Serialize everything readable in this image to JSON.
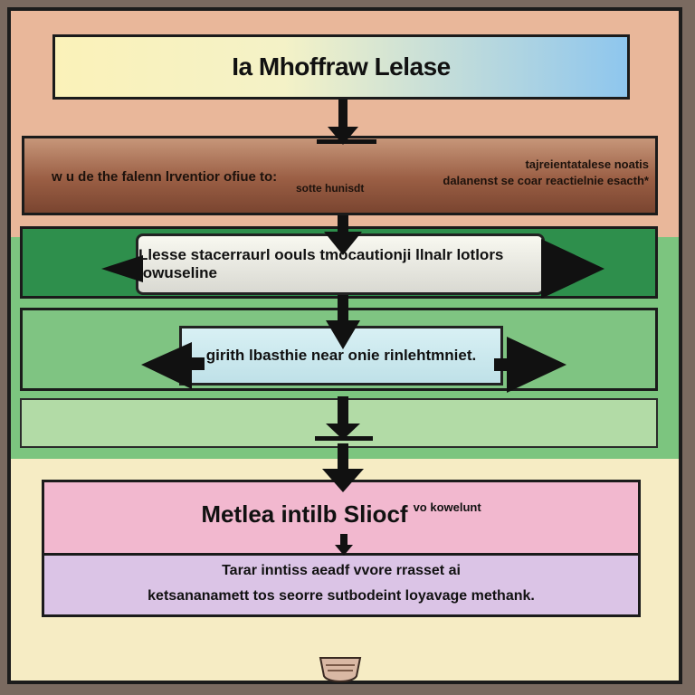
{
  "title": "Ia Mhoffraw Lelase",
  "step1": {
    "left_text": "w u de the falenn lrventior ofiue to:",
    "mid_text": "sotte hunisdt",
    "right_text_line1": "tajreientatalese noatis",
    "right_text_line2": "dalanenst se coar reactielnie esacth*"
  },
  "step2": {
    "text": "Llesse stacerraurl oouls tmocautionji llnalr lotlors lowuseline"
  },
  "step3": {
    "text": "girith lbasthie near onie rinlehtmniet."
  },
  "result": {
    "title": "Metlea intilb Sliocf",
    "title_note": "vo kowelunt",
    "line1": "Tarar inntiss aeadf vvore rrasset ai",
    "line2": "ketsananamett tos seorre sutbodeint loyavage methank."
  },
  "colors": {
    "frame": "#1c1c1c",
    "title_fill_left": "#fbf2b9",
    "title_fill_right": "#8ec6ee",
    "brown_panel": "#9a5e44",
    "dark_green": "#2e8f4c",
    "mid_green": "#7fc482",
    "pink": "#f2b8cf",
    "lilac": "#dbc4e6"
  }
}
